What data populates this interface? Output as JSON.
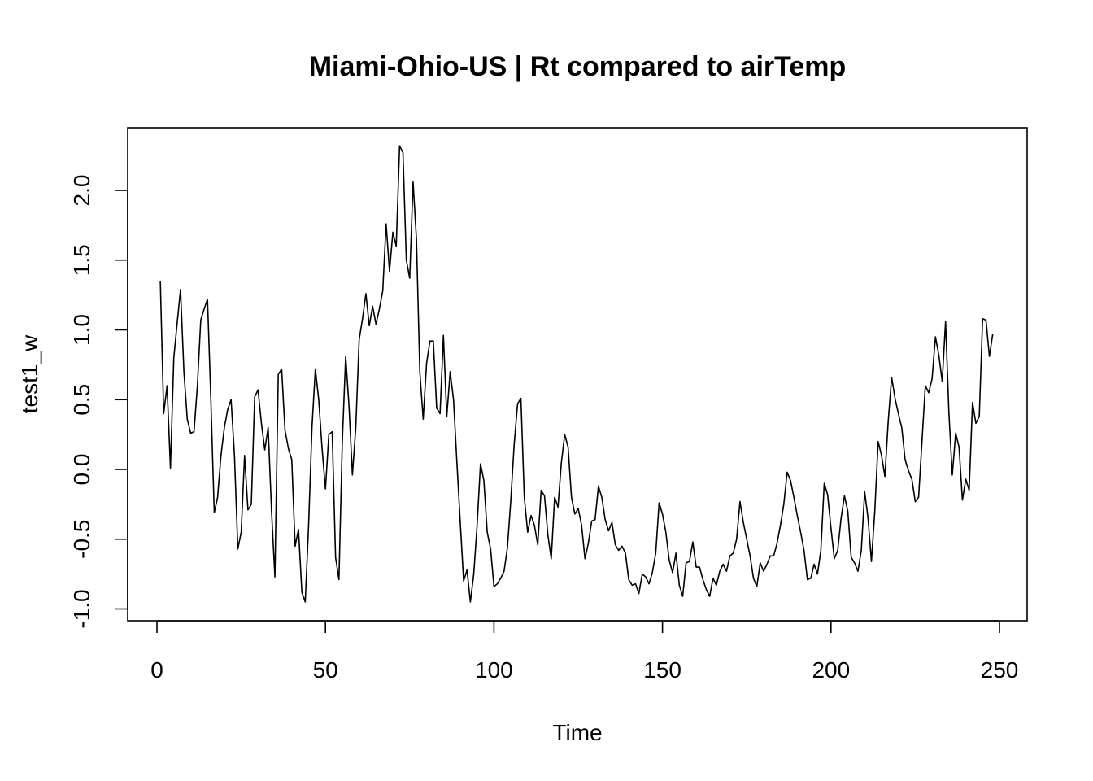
{
  "chart_data": {
    "type": "line",
    "title": "Miami-Ohio-US | Rt compared to airTemp",
    "xlabel": "Time",
    "ylabel": "test1_w",
    "xlim": [
      0,
      250
    ],
    "ylim": [
      -1.0,
      2.3
    ],
    "xticks": [
      0,
      50,
      100,
      150,
      200,
      250
    ],
    "xtick_labels": [
      "0",
      "50",
      "100",
      "150",
      "200",
      "250"
    ],
    "yticks": [
      -1.0,
      -0.5,
      0.0,
      0.5,
      1.0,
      1.5,
      2.0
    ],
    "ytick_labels": [
      "-1.0",
      "-0.5",
      "0.0",
      "0.5",
      "1.0",
      "1.5",
      "2.0"
    ],
    "grid": false,
    "legend": "none",
    "line_color": "#000000",
    "series": [
      {
        "x": [
          1,
          2,
          3,
          4,
          5,
          6,
          7,
          8,
          9,
          10,
          11,
          12,
          13,
          14,
          15,
          16,
          17,
          18,
          19,
          20,
          21,
          22,
          23,
          24,
          25,
          26,
          27,
          28,
          29,
          30,
          31,
          32,
          33,
          34,
          35,
          36,
          37,
          38,
          39,
          40,
          41,
          42,
          43,
          44,
          45,
          46,
          47,
          48,
          49,
          50,
          51,
          52,
          53,
          54,
          55,
          56,
          57,
          58,
          59,
          60,
          61,
          62,
          63,
          64,
          65,
          66,
          67,
          68,
          69,
          70,
          71,
          72,
          73,
          74,
          75,
          76,
          77,
          78,
          79,
          80,
          81,
          82,
          83,
          84,
          85,
          86,
          87,
          88,
          89,
          90,
          91,
          92,
          93,
          94,
          95,
          96,
          97,
          98,
          99,
          100,
          101,
          102,
          103,
          104,
          105,
          106,
          107,
          108,
          109,
          110,
          111,
          112,
          113,
          114,
          115,
          116,
          117,
          118,
          119,
          120,
          121,
          122,
          123,
          124,
          125,
          126,
          127,
          128,
          129,
          130,
          131,
          132,
          133,
          134,
          135,
          136,
          137,
          138,
          139,
          140,
          141,
          142,
          143,
          144,
          145,
          146,
          147,
          148,
          149,
          150,
          151,
          152,
          153,
          154,
          155,
          156,
          157,
          158,
          159,
          160,
          161,
          162,
          163,
          164,
          165,
          166,
          167,
          168,
          169,
          170,
          171,
          172,
          173,
          174,
          175,
          176,
          177,
          178,
          179,
          180,
          181,
          182,
          183,
          184,
          185,
          186,
          187,
          188,
          189,
          190,
          191,
          192,
          193,
          194,
          195,
          196,
          197,
          198,
          199,
          200,
          201,
          202,
          203,
          204,
          205,
          206,
          207,
          208,
          209,
          210,
          211,
          212,
          213,
          214,
          215,
          216,
          217,
          218,
          219,
          220,
          221,
          222,
          223,
          224,
          225,
          226,
          227,
          228,
          229,
          230,
          231,
          232,
          233,
          234,
          235,
          236,
          237,
          238,
          239,
          240,
          241,
          242,
          243,
          244,
          245,
          246,
          247,
          248
        ],
        "values": [
          1.35,
          0.4,
          0.6,
          0.01,
          0.8,
          1.05,
          1.29,
          0.7,
          0.36,
          0.26,
          0.27,
          0.6,
          1.07,
          1.15,
          1.22,
          0.5,
          -0.31,
          -0.2,
          0.1,
          0.3,
          0.43,
          0.5,
          0.1,
          -0.57,
          -0.45,
          0.1,
          -0.29,
          -0.25,
          0.52,
          0.57,
          0.33,
          0.14,
          0.3,
          -0.3,
          -0.77,
          0.68,
          0.72,
          0.28,
          0.15,
          0.07,
          -0.55,
          -0.43,
          -0.88,
          -0.95,
          -0.4,
          0.3,
          0.72,
          0.5,
          0.15,
          -0.14,
          0.25,
          0.27,
          -0.63,
          -0.79,
          0.2,
          0.81,
          0.45,
          -0.04,
          0.3,
          0.93,
          1.08,
          1.26,
          1.03,
          1.17,
          1.04,
          1.15,
          1.28,
          1.76,
          1.42,
          1.7,
          1.6,
          2.32,
          2.27,
          1.5,
          1.37,
          2.06,
          1.65,
          0.7,
          0.36,
          0.76,
          0.92,
          0.92,
          0.44,
          0.4,
          0.96,
          0.38,
          0.7,
          0.5,
          0.05,
          -0.38,
          -0.8,
          -0.72,
          -0.95,
          -0.75,
          -0.4,
          0.04,
          -0.08,
          -0.45,
          -0.57,
          -0.84,
          -0.82,
          -0.78,
          -0.73,
          -0.56,
          -0.22,
          0.18,
          0.47,
          0.51,
          -0.2,
          -0.45,
          -0.33,
          -0.4,
          -0.54,
          -0.15,
          -0.19,
          -0.47,
          -0.64,
          -0.2,
          -0.27,
          0.05,
          0.25,
          0.16,
          -0.2,
          -0.32,
          -0.28,
          -0.4,
          -0.64,
          -0.53,
          -0.37,
          -0.36,
          -0.12,
          -0.2,
          -0.36,
          -0.44,
          -0.38,
          -0.54,
          -0.58,
          -0.55,
          -0.6,
          -0.79,
          -0.83,
          -0.82,
          -0.89,
          -0.75,
          -0.77,
          -0.82,
          -0.74,
          -0.6,
          -0.24,
          -0.32,
          -0.45,
          -0.65,
          -0.74,
          -0.6,
          -0.83,
          -0.91,
          -0.67,
          -0.66,
          -0.52,
          -0.7,
          -0.7,
          -0.79,
          -0.86,
          -0.91,
          -0.78,
          -0.83,
          -0.73,
          -0.68,
          -0.73,
          -0.62,
          -0.6,
          -0.5,
          -0.23,
          -0.38,
          -0.5,
          -0.62,
          -0.78,
          -0.84,
          -0.67,
          -0.73,
          -0.68,
          -0.62,
          -0.62,
          -0.53,
          -0.4,
          -0.25,
          -0.02,
          -0.08,
          -0.2,
          -0.33,
          -0.45,
          -0.58,
          -0.79,
          -0.78,
          -0.68,
          -0.75,
          -0.58,
          -0.1,
          -0.18,
          -0.42,
          -0.64,
          -0.58,
          -0.35,
          -0.19,
          -0.3,
          -0.63,
          -0.67,
          -0.73,
          -0.58,
          -0.16,
          -0.35,
          -0.66,
          -0.3,
          0.2,
          0.1,
          -0.05,
          0.35,
          0.66,
          0.51,
          0.4,
          0.3,
          0.07,
          -0.01,
          -0.07,
          -0.23,
          -0.2,
          0.2,
          0.6,
          0.55,
          0.65,
          0.95,
          0.82,
          0.63,
          1.06,
          0.4,
          -0.04,
          0.26,
          0.16,
          -0.22,
          -0.07,
          -0.15,
          0.48,
          0.33,
          0.38,
          1.08,
          1.07,
          0.81,
          0.97
        ]
      }
    ]
  }
}
